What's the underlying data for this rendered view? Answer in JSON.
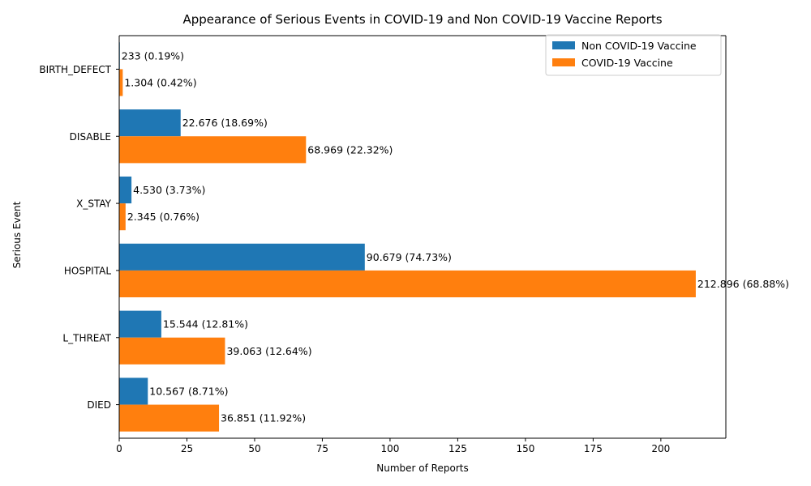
{
  "chart_data": {
    "type": "bar",
    "orientation": "horizontal",
    "title": "Appearance of Serious Events in COVID-19 and Non COVID-19 Vaccine Reports",
    "xlabel": "Number of Reports",
    "ylabel": "Serious Event",
    "categories": [
      "DIED",
      "L_THREAT",
      "HOSPITAL",
      "X_STAY",
      "DISABLE",
      "BIRTH_DEFECT"
    ],
    "xlim": [
      0,
      224
    ],
    "xticks": [
      0,
      25,
      50,
      75,
      100,
      125,
      150,
      175,
      200
    ],
    "grid": false,
    "legend_position": "top-right",
    "series": [
      {
        "name": "Non COVID-19 Vaccine",
        "color": "#1f77b4",
        "values": [
          10.567,
          15.544,
          90.679,
          4.53,
          22.676,
          0.233
        ],
        "labels": [
          "10.567 (8.71%)",
          "15.544 (12.81%)",
          "90.679 (74.73%)",
          "4.530 (3.73%)",
          "22.676 (18.69%)",
          "233 (0.19%)"
        ]
      },
      {
        "name": "COVID-19 Vaccine",
        "color": "#ff7f0e",
        "values": [
          36.851,
          39.063,
          212.896,
          2.345,
          68.969,
          1.304
        ],
        "labels": [
          "36.851 (11.92%)",
          "39.063 (12.64%)",
          "212.896 (68.88%)",
          "2.345 (0.76%)",
          "68.969 (22.32%)",
          "1.304 (0.42%)"
        ]
      }
    ]
  }
}
